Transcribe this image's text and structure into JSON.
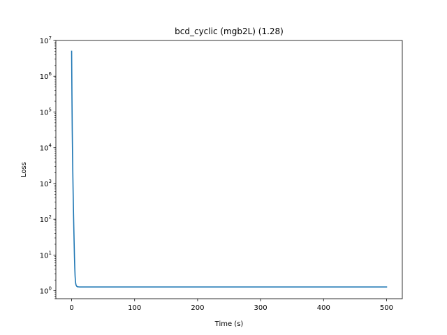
{
  "chart_data": {
    "type": "line",
    "title": "bcd_cyclic (mgb2L) (1.28)",
    "xlabel": "Time (s)",
    "ylabel": "Loss",
    "xlim": [
      -25,
      525
    ],
    "ylim": [
      0.6,
      10000000
    ],
    "yscale": "log",
    "grid": false,
    "x_ticks": [
      0,
      100,
      200,
      300,
      400,
      500
    ],
    "y_ticks": [
      {
        "value": 1,
        "base": "10",
        "exp": "0"
      },
      {
        "value": 10,
        "base": "10",
        "exp": "1"
      },
      {
        "value": 100,
        "base": "10",
        "exp": "2"
      },
      {
        "value": 1000,
        "base": "10",
        "exp": "3"
      },
      {
        "value": 10000,
        "base": "10",
        "exp": "4"
      },
      {
        "value": 100000,
        "base": "10",
        "exp": "5"
      },
      {
        "value": 1000000,
        "base": "10",
        "exp": "6"
      },
      {
        "value": 10000000,
        "base": "10",
        "exp": "7"
      }
    ],
    "series": [
      {
        "color": "#1f77b4",
        "x": [
          0,
          0.5,
          1,
          1.5,
          2,
          2.5,
          3,
          3.5,
          4,
          4.5,
          5,
          5.5,
          6,
          6.5,
          7,
          8,
          9,
          10,
          12,
          20,
          50,
          100,
          200,
          300,
          400,
          500
        ],
        "y": [
          5000000,
          300000,
          30000,
          6000,
          1500,
          450,
          150,
          55,
          22,
          9,
          4.5,
          2.6,
          1.9,
          1.6,
          1.45,
          1.35,
          1.3,
          1.29,
          1.28,
          1.28,
          1.28,
          1.28,
          1.28,
          1.28,
          1.28,
          1.28
        ]
      }
    ]
  }
}
